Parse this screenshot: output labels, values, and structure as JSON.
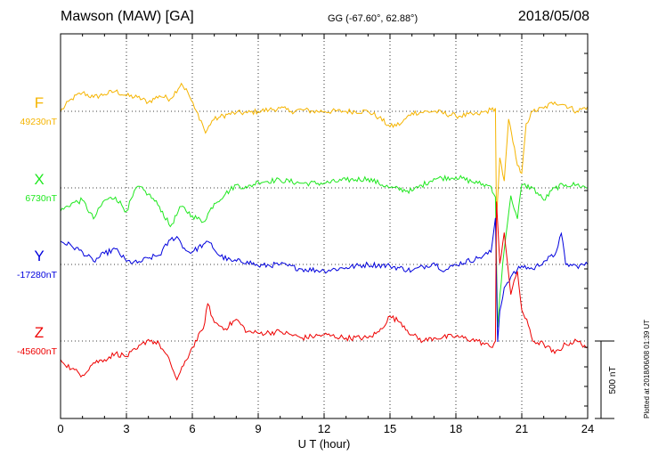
{
  "header": {
    "station": "Mawson (MAW)  [GA]",
    "coords": "GG (-67.60°,  62.88°)",
    "date": "2018/05/08"
  },
  "plotted_note": "Plotted at 2018/06/08 01:39 UT",
  "scale_label": "500 nT",
  "chart_data": {
    "type": "line",
    "xlabel": "U T (hour)",
    "xlim": [
      0,
      24
    ],
    "x_ticks": [
      0,
      3,
      6,
      9,
      12,
      15,
      18,
      21,
      24
    ],
    "scale_nT": 500,
    "grid": true,
    "series": [
      {
        "name": "F",
        "baseline_label": "49230nT",
        "color": "#f5b400",
        "x": [
          0,
          0.5,
          1.0,
          1.5,
          2.0,
          2.5,
          3.0,
          3.5,
          4.0,
          4.5,
          5.0,
          5.5,
          5.8,
          6.1,
          6.4,
          6.6,
          6.9,
          7.2,
          7.6,
          8.0,
          8.5,
          9.0,
          9.5,
          10.0,
          10.5,
          11.0,
          11.5,
          12.0,
          13.0,
          14.0,
          14.5,
          15.0,
          15.5,
          16.0,
          17.0,
          18.0,
          19.0,
          19.6,
          19.8,
          19.85,
          20.0,
          20.2,
          20.4,
          20.6,
          20.8,
          21.0,
          21.2,
          21.5,
          22.0,
          22.5,
          23.0,
          23.5,
          24.0
        ],
        "y": [
          0,
          80,
          120,
          90,
          110,
          130,
          100,
          90,
          60,
          100,
          80,
          180,
          120,
          20,
          -60,
          -140,
          -60,
          -40,
          -20,
          -10,
          -10,
          0,
          10,
          20,
          0,
          10,
          0,
          0,
          0,
          0,
          -40,
          -100,
          -80,
          -10,
          0,
          -30,
          -20,
          10,
          20,
          -700,
          -300,
          -450,
          -50,
          -200,
          -350,
          -400,
          -80,
          0,
          20,
          60,
          40,
          0,
          30
        ]
      },
      {
        "name": "X",
        "baseline_label": "6730nT",
        "color": "#1fe81f",
        "x": [
          0,
          0.5,
          1.0,
          1.5,
          2.0,
          2.5,
          3.0,
          3.5,
          4.0,
          4.5,
          5.0,
          5.5,
          6.0,
          6.5,
          7.0,
          7.5,
          8.0,
          8.5,
          9.0,
          10.0,
          11.0,
          12.0,
          13.0,
          14.0,
          15.0,
          16.0,
          17.0,
          18.0,
          19.0,
          19.6,
          19.8,
          19.9,
          20.0,
          20.2,
          20.5,
          20.8,
          21.0,
          21.5,
          22.0,
          22.5,
          23.0,
          23.5,
          24.0
        ],
        "y": [
          -150,
          -100,
          -80,
          -200,
          -80,
          -60,
          -150,
          10,
          -40,
          -120,
          -250,
          -120,
          -180,
          -220,
          -100,
          -40,
          20,
          0,
          40,
          50,
          30,
          30,
          50,
          60,
          0,
          -20,
          60,
          70,
          30,
          10,
          -60,
          -900,
          -700,
          -400,
          -50,
          -200,
          20,
          0,
          -80,
          0,
          20,
          20,
          0
        ]
      },
      {
        "name": "Y",
        "baseline_label": "-17280nT",
        "color": "#0000dd",
        "x": [
          0,
          0.5,
          1.0,
          1.5,
          2.0,
          2.5,
          3.0,
          3.5,
          4.0,
          4.5,
          5.0,
          5.3,
          5.7,
          6.0,
          6.5,
          6.8,
          7.2,
          7.8,
          8.5,
          9.0,
          10.0,
          11.0,
          12.0,
          13.0,
          14.0,
          15.0,
          16.0,
          17.0,
          17.5,
          18.0,
          19.0,
          19.6,
          19.8,
          19.9,
          20.0,
          20.2,
          20.5,
          21.0,
          21.5,
          22.0,
          22.5,
          22.8,
          23.0,
          23.5,
          24.0
        ],
        "y": [
          150,
          120,
          80,
          20,
          70,
          100,
          20,
          10,
          40,
          60,
          160,
          180,
          90,
          80,
          130,
          140,
          60,
          20,
          20,
          -10,
          0,
          -30,
          -40,
          -20,
          0,
          -10,
          -40,
          10,
          -40,
          0,
          40,
          80,
          300,
          -500,
          -300,
          -150,
          -80,
          -10,
          -30,
          20,
          60,
          200,
          0,
          -10,
          0
        ]
      },
      {
        "name": "Z",
        "baseline_label": "-45600nT",
        "color": "#ee0000",
        "x": [
          0,
          0.5,
          1.0,
          1.5,
          2.0,
          2.5,
          3.0,
          3.5,
          4.0,
          4.5,
          5.0,
          5.3,
          5.6,
          6.0,
          6.5,
          6.7,
          7.0,
          7.5,
          8.0,
          8.5,
          9.0,
          10.0,
          11.0,
          12.0,
          13.0,
          14.0,
          14.5,
          15.0,
          15.5,
          16.0,
          16.5,
          17.0,
          18.0,
          19.0,
          19.6,
          19.8,
          19.85,
          20.0,
          20.2,
          20.5,
          20.8,
          21.0,
          21.3,
          21.5,
          22.0,
          22.5,
          23.0,
          23.5,
          24.0
        ],
        "y": [
          -120,
          -180,
          -220,
          -140,
          -120,
          -80,
          -100,
          -50,
          10,
          -20,
          -140,
          -250,
          -160,
          -40,
          80,
          240,
          120,
          80,
          140,
          60,
          50,
          60,
          20,
          40,
          20,
          20,
          60,
          160,
          120,
          40,
          0,
          20,
          30,
          0,
          -40,
          0,
          900,
          500,
          700,
          300,
          450,
          200,
          100,
          0,
          -20,
          -80,
          -20,
          0,
          -40
        ]
      }
    ]
  }
}
